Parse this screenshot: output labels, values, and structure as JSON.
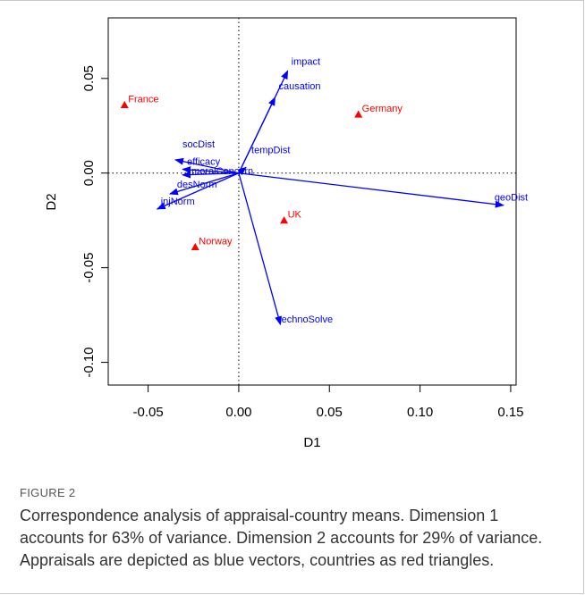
{
  "figure": {
    "label": "FIGURE 2",
    "caption": "Correspondence analysis of appraisal-country means. Dimension 1 accounts for 63% of variance. Dimension 2 accounts for 29% of variance. Appraisals are depicted as blue vectors, countries as red triangles."
  },
  "colors": {
    "vectors": "#0000ff",
    "countries": "#ff0000",
    "axes": "#000000"
  },
  "chart_data": {
    "type": "scatter",
    "title": "",
    "xlabel": "D1",
    "ylabel": "D2",
    "xlim": [
      -0.072,
      0.153
    ],
    "ylim": [
      -0.112,
      0.082
    ],
    "xticks": [
      "-0.05",
      "0.00",
      "0.05",
      "0.10",
      "0.15"
    ],
    "xtick_values": [
      -0.05,
      0.0,
      0.05,
      0.1,
      0.15
    ],
    "yticks": [
      "-0.10",
      "-0.05",
      "0.00",
      "0.05"
    ],
    "ytick_values": [
      -0.1,
      -0.05,
      0.0,
      0.05
    ],
    "reference_lines": {
      "x": 0,
      "y": 0,
      "style": "dotted"
    },
    "countries": [
      {
        "name": "France",
        "x": -0.063,
        "y": 0.036
      },
      {
        "name": "Germany",
        "x": 0.066,
        "y": 0.031
      },
      {
        "name": "UK",
        "x": 0.025,
        "y": -0.025
      },
      {
        "name": "Norway",
        "x": -0.024,
        "y": -0.039
      }
    ],
    "vectors": [
      {
        "name": "impact",
        "x": 0.027,
        "y": 0.054
      },
      {
        "name": "causation",
        "x": 0.02,
        "y": 0.04
      },
      {
        "name": "tempDist",
        "x": 0.004,
        "y": 0.003
      },
      {
        "name": "geoDist",
        "x": 0.146,
        "y": -0.017
      },
      {
        "name": "technoSolve",
        "x": 0.023,
        "y": -0.08
      },
      {
        "name": "socDist",
        "x": -0.035,
        "y": 0.007
      },
      {
        "name": "efficacy",
        "x": -0.031,
        "y": 0.002
      },
      {
        "name": "moralConcern",
        "x": -0.031,
        "y": -0.001
      },
      {
        "name": "desNorm",
        "x": -0.038,
        "y": -0.011
      },
      {
        "name": "injNorm",
        "x": -0.045,
        "y": -0.019
      }
    ]
  }
}
